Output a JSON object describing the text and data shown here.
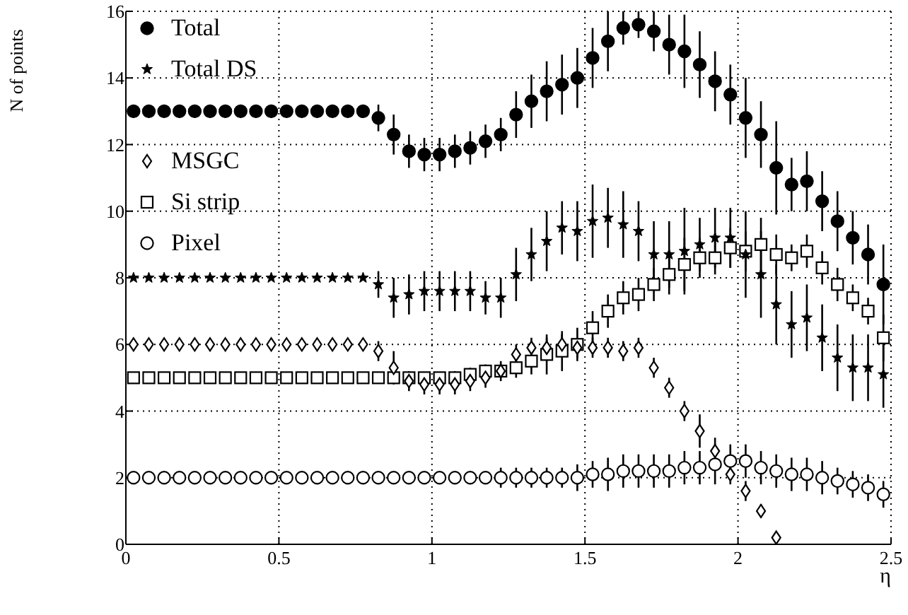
{
  "chart_data": {
    "type": "scatter",
    "xlabel": "η",
    "ylabel": "N of points",
    "x": [
      0.025,
      0.075,
      0.125,
      0.175,
      0.225,
      0.275,
      0.325,
      0.375,
      0.425,
      0.475,
      0.525,
      0.575,
      0.625,
      0.675,
      0.725,
      0.775,
      0.825,
      0.875,
      0.925,
      0.975,
      1.025,
      1.075,
      1.125,
      1.175,
      1.225,
      1.275,
      1.325,
      1.375,
      1.425,
      1.475,
      1.525,
      1.575,
      1.625,
      1.675,
      1.725,
      1.775,
      1.825,
      1.875,
      1.925,
      1.975,
      2.025,
      2.075,
      2.125,
      2.175,
      2.225,
      2.275,
      2.325,
      2.375,
      2.425,
      2.475
    ],
    "xlim": [
      0,
      2.5
    ],
    "xticks": [
      0,
      0.5,
      1,
      1.5,
      2,
      2.5
    ],
    "ylim": [
      0,
      16
    ],
    "yticks": [
      0,
      2,
      4,
      6,
      8,
      10,
      12,
      14,
      16
    ],
    "grid": true,
    "legend": "top left",
    "series": [
      {
        "name": "Total",
        "color": "#000000",
        "marker": "circle",
        "values": [
          13,
          13,
          13,
          13,
          13,
          13,
          13,
          13,
          13,
          13,
          13,
          13,
          13,
          13,
          13,
          13,
          12.8,
          12.3,
          11.8,
          11.7,
          11.7,
          11.8,
          11.9,
          12.1,
          12.3,
          12.9,
          13.3,
          13.6,
          13.8,
          14.0,
          14.6,
          15.1,
          15.5,
          15.6,
          15.4,
          15.0,
          14.8,
          14.4,
          13.9,
          13.5,
          12.8,
          12.3,
          11.3,
          10.8,
          10.9,
          10.3,
          9.7,
          9.2,
          8.7,
          7.8
        ],
        "errors": [
          0.2,
          0.2,
          0.2,
          0.2,
          0.2,
          0.2,
          0.2,
          0.2,
          0.2,
          0.2,
          0.2,
          0.2,
          0.2,
          0.2,
          0.2,
          0.2,
          0.4,
          0.6,
          0.5,
          0.5,
          0.5,
          0.5,
          0.5,
          0.5,
          0.5,
          0.7,
          0.8,
          0.9,
          0.9,
          0.9,
          0.9,
          0.9,
          0.5,
          0.4,
          0.6,
          0.9,
          1.1,
          1,
          0.9,
          0.9,
          1.2,
          1,
          1.4,
          0.8,
          0.9,
          0.9,
          0.9,
          0.8,
          0.9,
          1.2
        ]
      },
      {
        "name": "Total DS",
        "color": "#000000",
        "marker": "star",
        "values": [
          8,
          8,
          8,
          8,
          8,
          8,
          8,
          8,
          8,
          8,
          8,
          8,
          8,
          8,
          8,
          8,
          7.8,
          7.4,
          7.5,
          7.6,
          7.6,
          7.6,
          7.6,
          7.4,
          7.4,
          8.1,
          8.7,
          9.1,
          9.5,
          9.4,
          9.7,
          9.8,
          9.6,
          9.4,
          8.7,
          8.7,
          8.8,
          9.0,
          9.2,
          9.2,
          8.7,
          8.1,
          7.2,
          6.6,
          6.8,
          6.2,
          5.6,
          5.3,
          5.3,
          5.1
        ],
        "errors": [
          null,
          null,
          null,
          null,
          null,
          null,
          null,
          null,
          null,
          null,
          null,
          null,
          null,
          null,
          null,
          null,
          0.4,
          0.6,
          0.6,
          0.6,
          0.6,
          0.6,
          0.6,
          0.5,
          0.6,
          0.8,
          0.8,
          0.9,
          0.8,
          0.9,
          1.1,
          0.9,
          1.0,
          0.9,
          1.0,
          1.0,
          1.3,
          0.8,
          0.9,
          0.9,
          1.3,
          1.3,
          1.2,
          1.0,
          1.0,
          1.0,
          1.0,
          1.0,
          1.0,
          1.0
        ]
      },
      {
        "name": "MSGC",
        "color": "#000000",
        "marker": "diamond",
        "values": [
          6,
          6,
          6,
          6,
          6,
          6,
          6,
          6,
          6,
          6,
          6,
          6,
          6,
          6,
          6,
          6,
          5.8,
          5.3,
          4.9,
          4.8,
          4.8,
          4.8,
          4.9,
          5.0,
          5.2,
          5.7,
          5.9,
          5.9,
          6.0,
          5.9,
          5.9,
          5.9,
          5.8,
          5.9,
          5.3,
          4.7,
          4.0,
          3.4,
          2.8,
          2.1,
          1.6,
          1.0,
          0.2,
          null,
          null,
          null,
          null,
          null,
          null,
          null
        ],
        "errors": [
          null,
          null,
          null,
          null,
          null,
          null,
          null,
          null,
          null,
          null,
          null,
          null,
          null,
          null,
          null,
          null,
          0.3,
          0.5,
          0.3,
          0.3,
          0.3,
          0.3,
          0.3,
          0.3,
          0.3,
          0.3,
          0.3,
          0.3,
          0.3,
          0.3,
          0.3,
          0.3,
          0.3,
          0.3,
          0.3,
          0.3,
          0.3,
          0.5,
          0.4,
          0.3,
          0.3,
          0.2,
          null,
          null,
          null,
          null,
          null,
          null,
          null,
          null
        ]
      },
      {
        "name": "Si strip",
        "color": "#000000",
        "marker": "square",
        "values": [
          5,
          5,
          5,
          5,
          5,
          5,
          5,
          5,
          5,
          5,
          5,
          5,
          5,
          5,
          5,
          5,
          5,
          5,
          5.0,
          5.0,
          5.0,
          5.0,
          5.1,
          5.2,
          5.2,
          5.3,
          5.5,
          5.7,
          5.8,
          6.0,
          6.5,
          7.0,
          7.4,
          7.5,
          7.8,
          8.1,
          8.4,
          8.6,
          8.6,
          8.9,
          8.8,
          9.0,
          8.7,
          8.6,
          8.8,
          8.3,
          7.8,
          7.4,
          7.0,
          6.2
        ],
        "errors": [
          null,
          null,
          null,
          null,
          null,
          null,
          null,
          null,
          null,
          null,
          null,
          null,
          null,
          null,
          null,
          null,
          null,
          null,
          null,
          null,
          0.1,
          0.2,
          0.2,
          0.2,
          0.2,
          0.3,
          0.4,
          0.6,
          0.6,
          0.5,
          0.5,
          0.5,
          0.5,
          0.5,
          0.5,
          0.6,
          0.8,
          0.6,
          0.5,
          0.6,
          0.6,
          0.8,
          0.6,
          0.4,
          0.5,
          0.5,
          0.5,
          0.4,
          0.4,
          0.7
        ]
      },
      {
        "name": "Pixel",
        "color": "#000000",
        "marker": "circle",
        "values": [
          2,
          2,
          2,
          2,
          2,
          2,
          2,
          2,
          2,
          2,
          2,
          2,
          2,
          2,
          2,
          2,
          2,
          2,
          2,
          2,
          2,
          2,
          2,
          2,
          2,
          2,
          2,
          2,
          2,
          2.0,
          2.1,
          2.1,
          2.2,
          2.2,
          2.2,
          2.2,
          2.3,
          2.3,
          2.4,
          2.5,
          2.5,
          2.3,
          2.2,
          2.1,
          2.1,
          2.0,
          1.9,
          1.8,
          1.7,
          1.5
        ],
        "errors": [
          null,
          null,
          null,
          null,
          null,
          null,
          null,
          null,
          null,
          null,
          null,
          null,
          null,
          null,
          null,
          null,
          null,
          null,
          null,
          null,
          null,
          null,
          null,
          null,
          0.3,
          0.3,
          0.3,
          0.3,
          0.3,
          0.4,
          0.4,
          0.5,
          0.5,
          0.5,
          0.5,
          0.5,
          0.5,
          0.5,
          0.6,
          0.5,
          0.5,
          0.5,
          0.5,
          0.5,
          0.5,
          0.5,
          0.4,
          0.4,
          0.4,
          0.4
        ]
      }
    ]
  }
}
